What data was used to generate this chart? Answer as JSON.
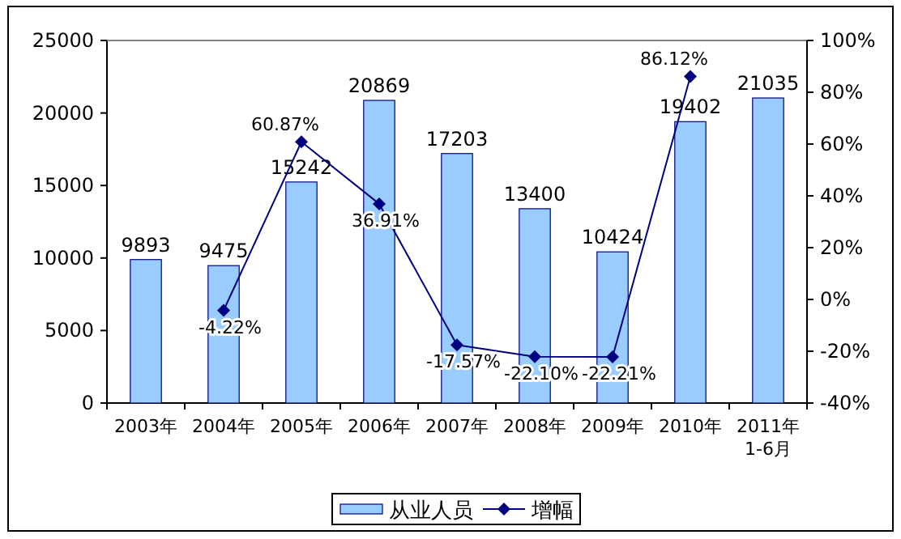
{
  "chart_data": {
    "type": "bar",
    "categories": [
      "2003年",
      "2004年",
      "2005年",
      "2006年",
      "2007年",
      "2008年",
      "2009年",
      "2010年",
      "2011年\n1-6月"
    ],
    "series": [
      {
        "name": "从业人员",
        "color": "#99ccff",
        "values": [
          9893,
          9475,
          15242,
          20869,
          17203,
          13400,
          10424,
          19402,
          21035
        ],
        "value_labels": [
          "9893",
          "9475",
          "15242",
          "20869",
          "17203",
          "13400",
          "10424",
          "19402",
          "21035"
        ]
      },
      {
        "name": "增幅",
        "type": "line",
        "axis": "y2",
        "color": "#000080",
        "marker": "diamond",
        "values": [
          null,
          -4.22,
          60.87,
          36.91,
          -17.57,
          -22.1,
          -22.21,
          86.12,
          null
        ],
        "value_labels": [
          null,
          "-4.22%",
          "60.87%",
          "36.91%",
          "-17.57%",
          "-22.10%",
          "-22.21%",
          "86.12%",
          null
        ]
      }
    ],
    "ylim": [
      0,
      25000
    ],
    "yticks": [
      0,
      5000,
      10000,
      15000,
      20000,
      25000
    ],
    "y2lim": [
      -40,
      100
    ],
    "y2ticks": [
      {
        "value": -40,
        "label": "-40%"
      },
      {
        "value": -20,
        "label": "-20%"
      },
      {
        "value": 0,
        "label": "0%"
      },
      {
        "value": 20,
        "label": "20%"
      },
      {
        "value": 40,
        "label": "40%"
      },
      {
        "value": 60,
        "label": "60%"
      },
      {
        "value": 80,
        "label": "80%"
      },
      {
        "value": 100,
        "label": "100%"
      }
    ],
    "legend": "bottom"
  }
}
